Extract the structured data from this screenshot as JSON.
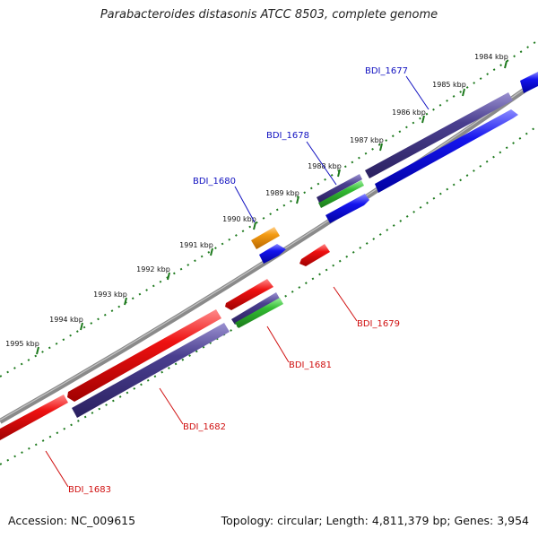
{
  "title": "Parabacteroides distasonis ATCC 8503, complete genome",
  "footer": {
    "accession": "Accession: NC_009615",
    "summary": "Topology: circular; Length: 4,811,379 bp; Genes: 3,954"
  },
  "colors": {
    "background": "#ffffff",
    "backbone": "#8a8a8a",
    "tick": "#1e7a1e",
    "forward_label": "#1010c0",
    "reverse_label": "#d01010",
    "red": "#ee1111",
    "blue": "#1414ee",
    "slate": "#4a3f8f",
    "green": "#33bb33",
    "orange": "#f39a12"
  },
  "ticks": [
    "1984 kbp",
    "1985 kbp",
    "1986 kbp",
    "1987 kbp",
    "1988 kbp",
    "1989 kbp",
    "1990 kbp",
    "1991 kbp",
    "1992 kbp",
    "1993 kbp",
    "1994 kbp",
    "1995 kbp"
  ],
  "gene_labels": {
    "forward": [
      "BDI_1677",
      "BDI_1678",
      "BDI_1680"
    ],
    "reverse": [
      "BDI_1679",
      "BDI_1681",
      "BDI_1682",
      "BDI_1683"
    ]
  },
  "features": [
    {
      "name": "BDI_1677",
      "strand": "+",
      "color": "blue"
    },
    {
      "name": "BDI_1677-coding",
      "strand": "+",
      "color": "slate"
    },
    {
      "name": "BDI_1678",
      "strand": "+",
      "color": "blue"
    },
    {
      "name": "BDI_1678-coding",
      "strand": "+",
      "color": "green"
    },
    {
      "name": "BDI_1680",
      "strand": "+",
      "color": "blue"
    },
    {
      "name": "BDI_1680-coding",
      "strand": "+",
      "color": "orange"
    },
    {
      "name": "BDI_1679",
      "strand": "-",
      "color": "red"
    },
    {
      "name": "BDI_1681",
      "strand": "-",
      "color": "red"
    },
    {
      "name": "BDI_1681-coding",
      "strand": "-",
      "color": "green"
    },
    {
      "name": "BDI_1682",
      "strand": "-",
      "color": "red"
    },
    {
      "name": "BDI_1682-coding",
      "strand": "-",
      "color": "slate"
    },
    {
      "name": "BDI_1683",
      "strand": "-",
      "color": "red"
    }
  ]
}
